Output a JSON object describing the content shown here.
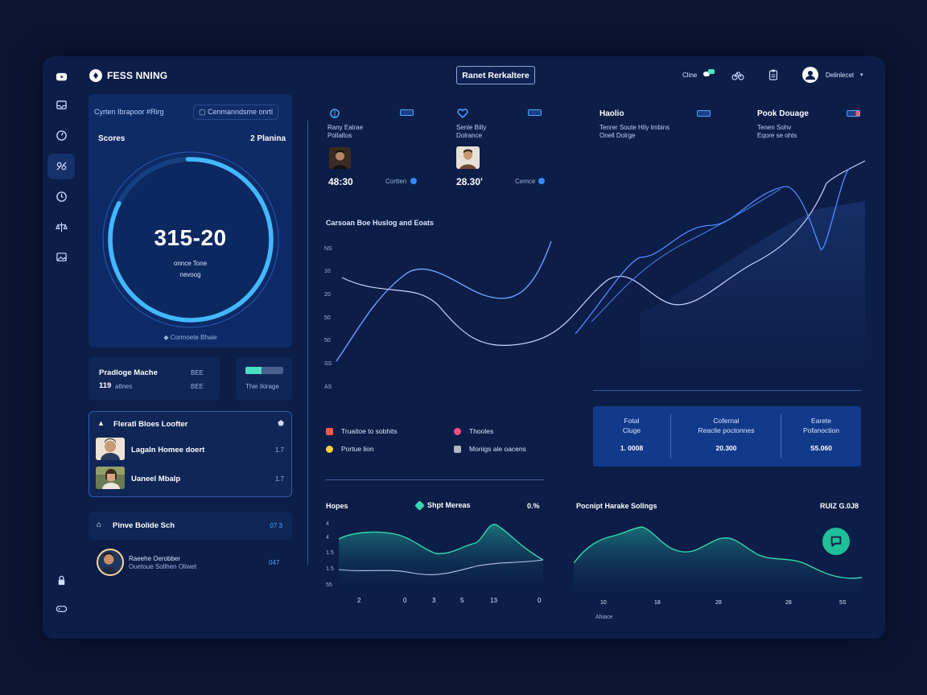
{
  "app": {
    "brand": "FESS NNING",
    "center_button": "Ranet Rerkaltere"
  },
  "topbar": {
    "status_label": "Cline",
    "user_name": "Delinlecet"
  },
  "score_panel": {
    "chip_left": "Cyrten Ibrapoor #Rirg",
    "chip_right": "Cenmanndsme onrtl",
    "title": "Scores",
    "right_label": "2 Planina",
    "value": "315-20",
    "sub1": "onnce Tone",
    "sub2": "nevoog",
    "footer": "Cormoete Bhaie",
    "progress": 0.83
  },
  "mini_left": {
    "title": "Pradloge Mache",
    "value": "119",
    "value_unit": "atlnes",
    "code1": "BEE",
    "code2": "BEE"
  },
  "mini_right": {
    "label": "Thie Ikirage",
    "progress": 0.42
  },
  "list_panel": {
    "title": "Fleratl Bloes Loofter",
    "rows": [
      {
        "name": "Lagaln Homee doert",
        "value": "1.7"
      },
      {
        "name": "Uaneel Mbalp",
        "value": "1.7"
      }
    ]
  },
  "link_row": {
    "label": "Pinve Bolide Sch",
    "value": "07 3"
  },
  "user_row": {
    "name": "Raeehe Oerobber",
    "detail": "Ouetoue Sollhen Oliwet",
    "value": "047"
  },
  "stats": [
    {
      "l1": "Rany Ealrae",
      "l2": "Pollaltos",
      "value": "48:30",
      "tag": "Cortten"
    },
    {
      "l1": "Senle Billy",
      "l2": "Dolrance",
      "value": "28.30'",
      "tag": "Cemce"
    },
    {
      "title": "Haolio",
      "l1": "Tenrer Soute Hily Imbins",
      "l2": "Onell Dolrge"
    },
    {
      "title": "Pook Douage",
      "l1": "Tenen Sohv",
      "l2": "Eqore se ohts"
    }
  ],
  "main_chart": {
    "title": "Carsoan Boe Huslog and Eoats",
    "y_ticks": [
      "NS",
      "10",
      "20",
      "50",
      "50",
      "SS",
      "AS"
    ],
    "legend": [
      {
        "label": "Truaitoe to sobhits",
        "color": "#ff5a4a"
      },
      {
        "label": "Thooles",
        "color": "#ff4b8a"
      },
      {
        "label": "Portue lion",
        "color": "#ffd23f"
      },
      {
        "label": "Monigs ale oacens",
        "color": "#b0b8c8"
      }
    ]
  },
  "summary_card": {
    "cols": [
      {
        "l1": "Fotal",
        "l2": "Cluge",
        "value": "1. 0008"
      },
      {
        "l1": "Cofernal",
        "l2": "Reaclie poctonnes",
        "value": "20.300"
      },
      {
        "l1": "Earete",
        "l2": "Pofanoction",
        "value": "S5.060"
      }
    ]
  },
  "bottom_left": {
    "title": "Hopes",
    "badge": "Shpt Mereas",
    "value": "0.%",
    "y_ticks": [
      "4",
      "4",
      "1.5",
      "1.5",
      "55"
    ],
    "x_ticks": [
      "2",
      "0",
      "3",
      "5",
      "13",
      "0"
    ]
  },
  "bottom_right": {
    "title": "Pocnipt Harake Sollngs",
    "value": "RUIZ G.0J8",
    "x_ticks": [
      "10",
      "18",
      "28",
      "28",
      "5S"
    ],
    "x_label": "Ahiace"
  },
  "colors": {
    "accent": "#3fb6ff",
    "teal": "#37d6b0",
    "line": "#6ea2ff"
  }
}
